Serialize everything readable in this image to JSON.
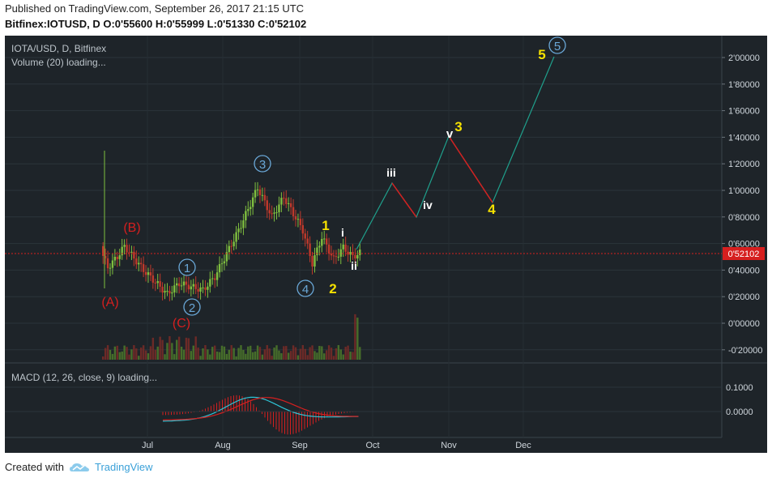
{
  "header": {
    "published": "Published on TradingView.com, September 26, 2017 21:15 UTC",
    "symbol_line": "Bitfinex:IOTUSD, D  O:0'55600 H:0'55999 L:0'51330 C:0'52102"
  },
  "legend": {
    "symbol": "IOTA/USD, D, Bitfinex",
    "volume": "Volume (20) loading...",
    "macd": "MACD (12, 26, close, 9) loading..."
  },
  "price_axis": {
    "ticks": [
      "2'00000",
      "1'80000",
      "1'60000",
      "1'40000",
      "1'20000",
      "1'00000",
      "0'80000",
      "0'60000",
      "0'40000",
      "0'20000",
      "0'00000",
      "-0'20000"
    ],
    "last_price": "0'52102"
  },
  "macd_axis": {
    "ticks": [
      "0.1000",
      "0.0000"
    ]
  },
  "time_axis": {
    "ticks": [
      "Jul",
      "Aug",
      "Sep",
      "Oct",
      "Nov",
      "Dec"
    ]
  },
  "wave_labels": {
    "A": "(A)",
    "B": "(B)",
    "C": "(C)",
    "c1": "1",
    "c2": "2",
    "c3": "3",
    "c4": "4",
    "c5": "5",
    "y1": "1",
    "y2": "2",
    "y3": "3",
    "y4": "4",
    "y5": "5",
    "i": "i",
    "ii": "ii",
    "iii": "iii",
    "iv": "iv",
    "v": "v"
  },
  "footer": {
    "created": "Created with",
    "brand": "TradingView"
  },
  "colors": {
    "background": "#1e2429",
    "bull": "#7fbf3f",
    "bear": "#c0392b",
    "circle_label": "#6aa8d8",
    "yellow_label": "#f5e100",
    "red_label": "#d61f1f",
    "macd_line": "#2ec4d6",
    "signal_line": "#d61f1f",
    "projection_up": "#1fa08c",
    "projection_down": "#d61f1f"
  }
}
